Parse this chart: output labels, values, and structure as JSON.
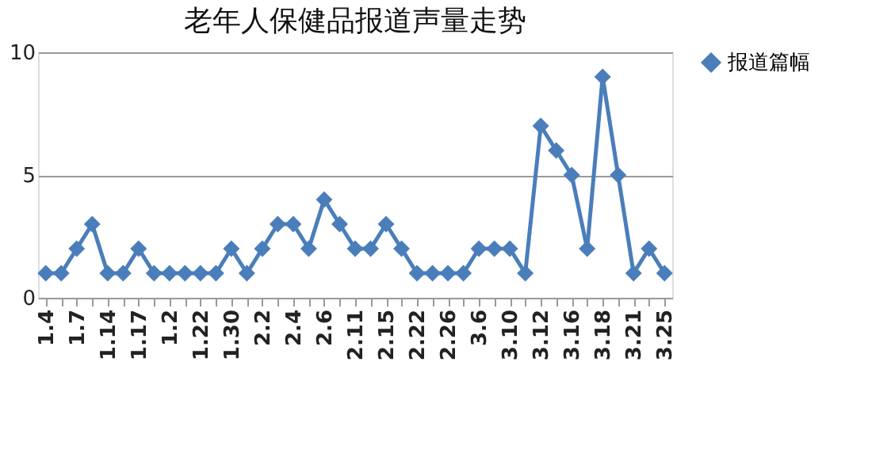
{
  "chart_data": {
    "type": "line",
    "title": "老年人保健品报道声量走势",
    "categories": [
      "1.4",
      null,
      "1.7",
      null,
      "1.14",
      null,
      "1.17",
      null,
      "1.2",
      null,
      "1.22",
      null,
      "1.30",
      null,
      "2.2",
      null,
      "2.4",
      null,
      "2.6",
      null,
      "2.11",
      null,
      "2.15",
      null,
      "2.22",
      null,
      "2.26",
      null,
      "3.6",
      null,
      "3.10",
      null,
      "3.12",
      null,
      "3.16",
      null,
      "3.18",
      null,
      "3.21",
      null,
      "3.25"
    ],
    "series": [
      {
        "name": "报道篇幅",
        "color": "#4a7ebb",
        "values": [
          1,
          1,
          2,
          3,
          1,
          1,
          2,
          1,
          1,
          1,
          1,
          1,
          2,
          1,
          2,
          3,
          3,
          2,
          4,
          3,
          2,
          2,
          3,
          2,
          1,
          1,
          1,
          1,
          2,
          2,
          2,
          1,
          7,
          6,
          5,
          2,
          9,
          5,
          1,
          2,
          1
        ]
      }
    ],
    "ylim": [
      0,
      10
    ],
    "yticks": [
      0,
      5,
      10
    ],
    "grid": "y",
    "legend": "right",
    "marker": "diamond",
    "line_style": "solid"
  }
}
